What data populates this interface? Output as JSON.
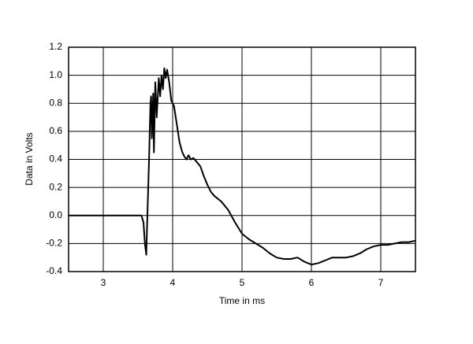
{
  "chart_data": {
    "type": "line",
    "x_label": "Time in ms",
    "y_label": "Data in Volts",
    "x": [
      2.5,
      3.55,
      3.58,
      3.6,
      3.62,
      3.63,
      3.66,
      3.68,
      3.69,
      3.7,
      3.72,
      3.73,
      3.75,
      3.77,
      3.8,
      3.82,
      3.84,
      3.86,
      3.88,
      3.9,
      3.92,
      3.95,
      3.98,
      4.02,
      4.06,
      4.1,
      4.14,
      4.17,
      4.2,
      4.23,
      4.26,
      4.3,
      4.35,
      4.4,
      4.45,
      4.5,
      4.55,
      4.6,
      4.7,
      4.8,
      4.9,
      5.0,
      5.1,
      5.2,
      5.3,
      5.4,
      5.5,
      5.6,
      5.7,
      5.8,
      5.9,
      6.0,
      6.1,
      6.2,
      6.3,
      6.4,
      6.5,
      6.6,
      6.7,
      6.8,
      6.9,
      7.0,
      7.1,
      7.2,
      7.3,
      7.4,
      7.5
    ],
    "values": [
      0,
      0,
      -0.05,
      -0.2,
      -0.28,
      -0.1,
      0.4,
      0.8,
      0.85,
      0.55,
      0.87,
      0.45,
      0.95,
      0.7,
      0.98,
      0.85,
      1.0,
      0.9,
      1.05,
      0.98,
      1.04,
      0.95,
      0.82,
      0.78,
      0.65,
      0.52,
      0.45,
      0.42,
      0.4,
      0.43,
      0.4,
      0.41,
      0.38,
      0.35,
      0.28,
      0.22,
      0.17,
      0.14,
      0.1,
      0.04,
      -0.05,
      -0.13,
      -0.17,
      -0.2,
      -0.23,
      -0.27,
      -0.3,
      -0.31,
      -0.31,
      -0.3,
      -0.33,
      -0.35,
      -0.34,
      -0.32,
      -0.3,
      -0.3,
      -0.3,
      -0.29,
      -0.27,
      -0.24,
      -0.22,
      -0.21,
      -0.21,
      -0.2,
      -0.19,
      -0.19,
      -0.18
    ],
    "color": "#000000",
    "xlim": [
      2.5,
      7.5
    ],
    "xticks": [
      3,
      4,
      5,
      6,
      7
    ],
    "ylim": [
      -0.4,
      1.2
    ],
    "yticks": [
      -0.4,
      -0.2,
      {
        "value": 0,
        "label": "0.0"
      },
      0.2,
      0.4,
      0.6,
      0.8,
      {
        "value": 1,
        "label": "1.0"
      },
      1.2
    ],
    "grid": true
  }
}
